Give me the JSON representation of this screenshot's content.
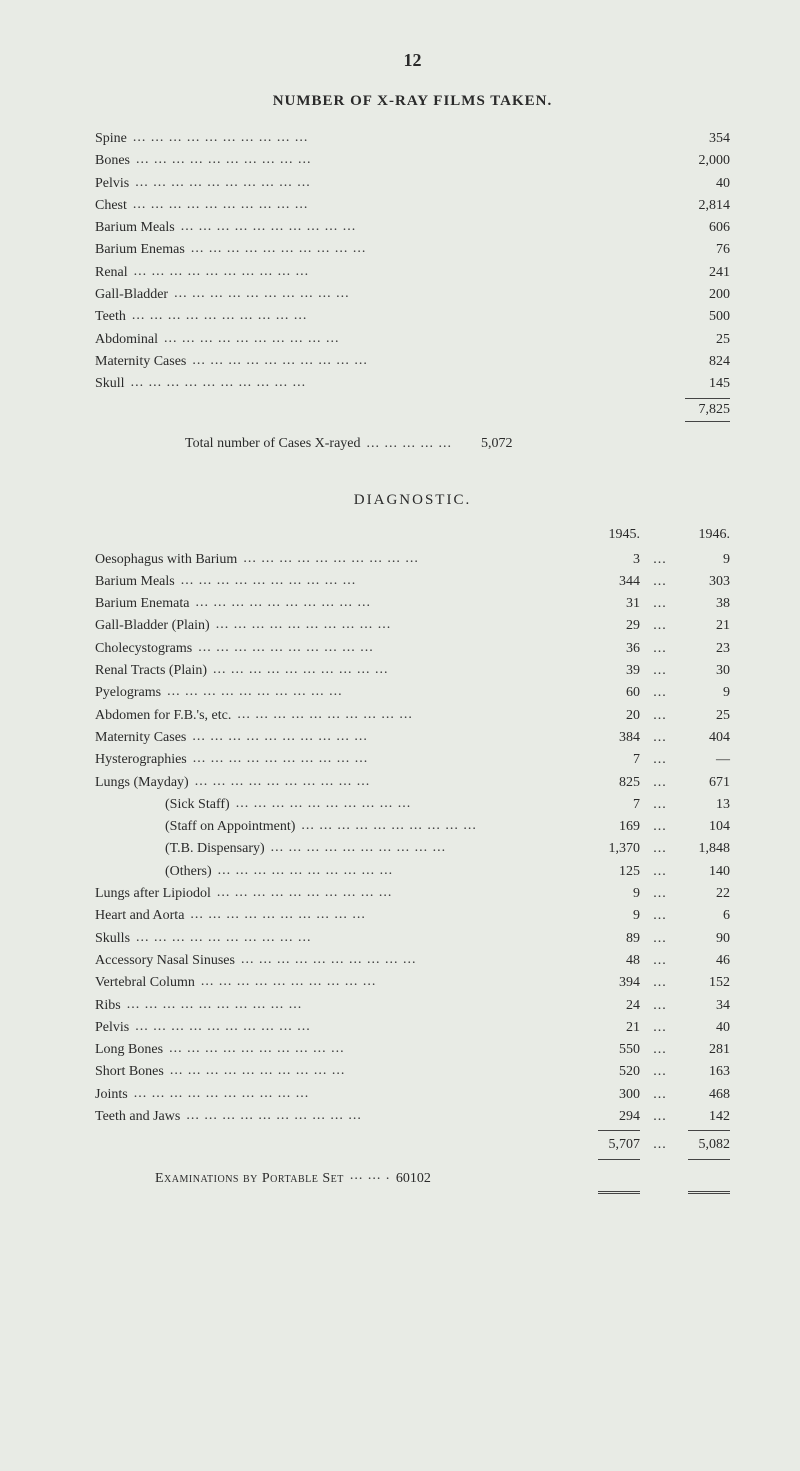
{
  "pageNumber": "12",
  "section1": {
    "title": "NUMBER OF X-RAY FILMS TAKEN.",
    "rows": [
      {
        "label": "Spine",
        "value": "354"
      },
      {
        "label": "Bones",
        "value": "2,000"
      },
      {
        "label": "Pelvis",
        "value": "40"
      },
      {
        "label": "Chest",
        "value": "2,814"
      },
      {
        "label": "Barium Meals",
        "value": "606"
      },
      {
        "label": "Barium Enemas",
        "value": "76"
      },
      {
        "label": "Renal",
        "value": "241"
      },
      {
        "label": "Gall-Bladder",
        "value": "200"
      },
      {
        "label": "Teeth",
        "value": "500"
      },
      {
        "label": "Abdominal",
        "value": "25"
      },
      {
        "label": "Maternity Cases",
        "value": "824"
      },
      {
        "label": "Skull",
        "value": "145"
      }
    ],
    "grandTotal": "7,825",
    "totalLine": {
      "label": "Total number of Cases X-rayed",
      "value": "5,072"
    }
  },
  "section2": {
    "title": "DIAGNOSTIC.",
    "yearHeaders": {
      "y1": "1945.",
      "y2": "1946."
    },
    "rows": [
      {
        "label": "Oesophagus with Barium",
        "v1": "3",
        "v2": "9",
        "indent": false
      },
      {
        "label": "Barium Meals",
        "v1": "344",
        "v2": "303",
        "indent": false
      },
      {
        "label": "Barium Enemata",
        "v1": "31",
        "v2": "38",
        "indent": false
      },
      {
        "label": "Gall-Bladder (Plain)",
        "v1": "29",
        "v2": "21",
        "indent": false
      },
      {
        "label": "Cholecystograms",
        "v1": "36",
        "v2": "23",
        "indent": false
      },
      {
        "label": "Renal Tracts (Plain)",
        "v1": "39",
        "v2": "30",
        "indent": false
      },
      {
        "label": "Pyelograms",
        "v1": "60",
        "v2": "9",
        "indent": false
      },
      {
        "label": "Abdomen for F.B.'s, etc.",
        "v1": "20",
        "v2": "25",
        "indent": false
      },
      {
        "label": "Maternity Cases",
        "v1": "384",
        "v2": "404",
        "indent": false
      },
      {
        "label": "Hysterographies",
        "v1": "7",
        "v2": "—",
        "indent": false
      },
      {
        "label": "Lungs (Mayday)",
        "v1": "825",
        "v2": "671",
        "indent": false
      },
      {
        "label": "(Sick Staff)",
        "v1": "7",
        "v2": "13",
        "indent": true
      },
      {
        "label": "(Staff on Appointment)",
        "v1": "169",
        "v2": "104",
        "indent": true
      },
      {
        "label": "(T.B. Dispensary)",
        "v1": "1,370",
        "v2": "1,848",
        "indent": true
      },
      {
        "label": "(Others)",
        "v1": "125",
        "v2": "140",
        "indent": true
      },
      {
        "label": "Lungs after Lipiodol",
        "v1": "9",
        "v2": "22",
        "indent": false
      },
      {
        "label": "Heart and Aorta",
        "v1": "9",
        "v2": "6",
        "indent": false
      },
      {
        "label": "Skulls",
        "v1": "89",
        "v2": "90",
        "indent": false
      },
      {
        "label": "Accessory Nasal Sinuses",
        "v1": "48",
        "v2": "46",
        "indent": false
      },
      {
        "label": "Vertebral Column",
        "v1": "394",
        "v2": "152",
        "indent": false
      },
      {
        "label": "Ribs",
        "v1": "24",
        "v2": "34",
        "indent": false
      },
      {
        "label": "Pelvis",
        "v1": "21",
        "v2": "40",
        "indent": false
      },
      {
        "label": "Long Bones",
        "v1": "550",
        "v2": "281",
        "indent": false
      },
      {
        "label": "Short Bones",
        "v1": "520",
        "v2": "163",
        "indent": false
      },
      {
        "label": "Joints",
        "v1": "300",
        "v2": "468",
        "indent": false
      },
      {
        "label": "Teeth and Jaws",
        "v1": "294",
        "v2": "142",
        "indent": false
      }
    ],
    "subtotal": {
      "v1": "5,707",
      "v2": "5,082"
    },
    "exam": {
      "label": "Examinations by Portable Set",
      "v1": "60",
      "v2": "102"
    }
  }
}
